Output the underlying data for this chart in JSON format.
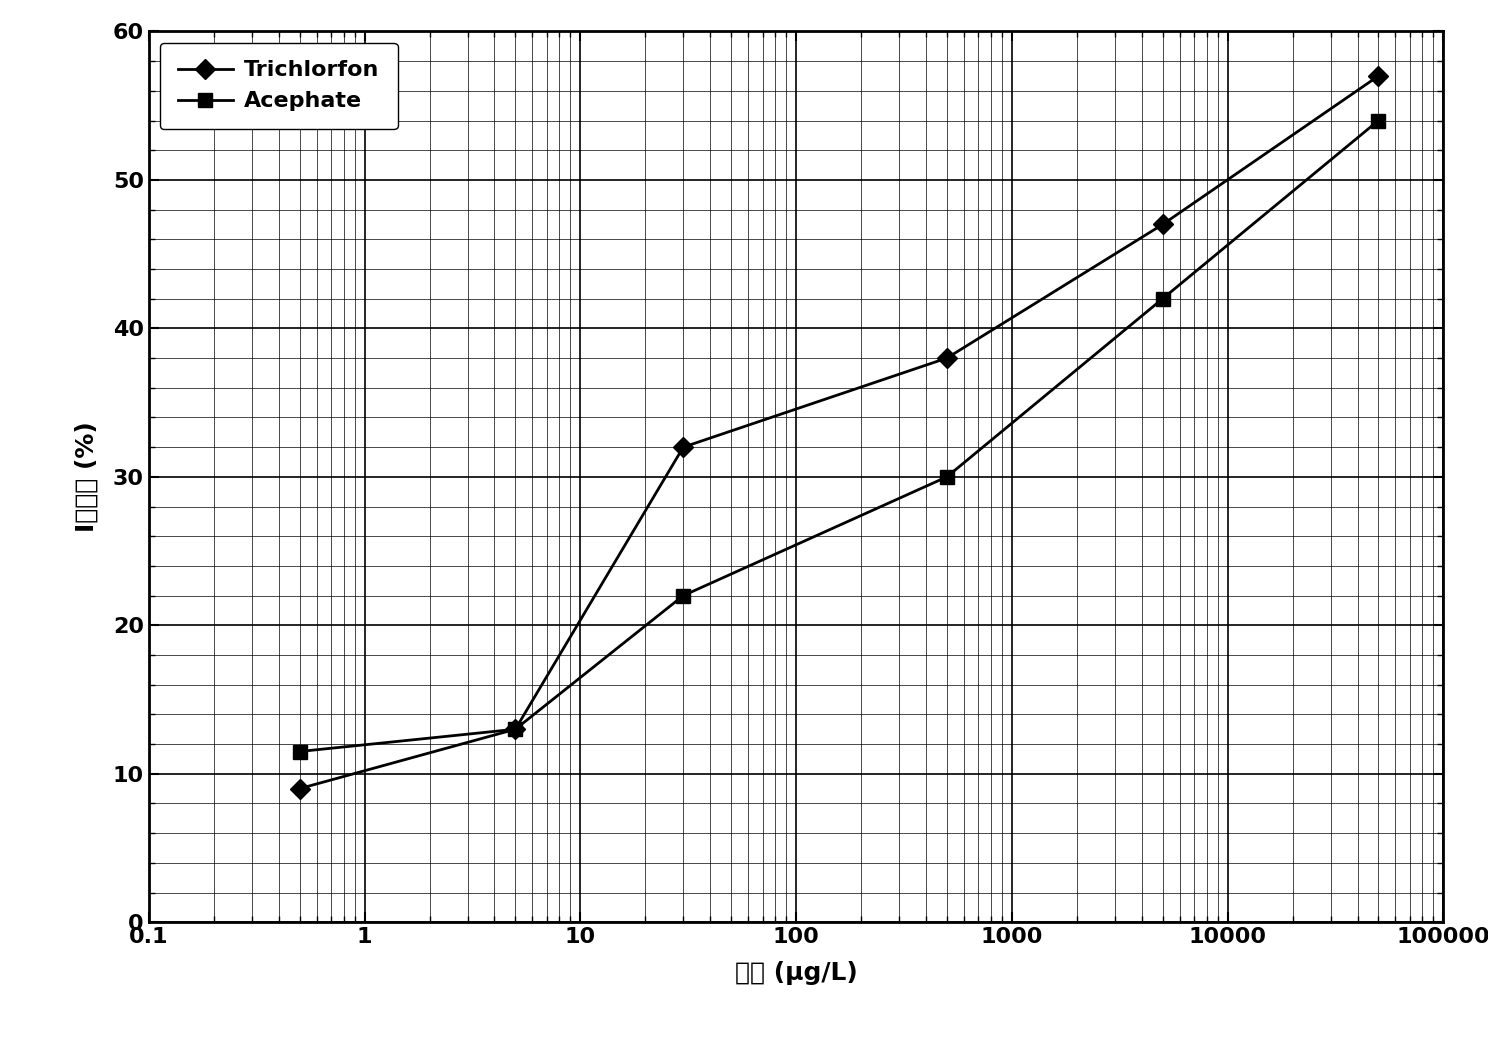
{
  "trichlorfon_x": [
    0.5,
    5,
    30,
    500,
    5000,
    50000
  ],
  "trichlorfon_y": [
    9,
    13,
    32,
    38,
    47,
    57
  ],
  "acephate_x": [
    0.5,
    5,
    30,
    500,
    5000,
    50000
  ],
  "acephate_y": [
    11.5,
    13,
    22,
    30,
    42,
    54
  ],
  "trichlorfon_color": "#000000",
  "acephate_color": "#000000",
  "xlim": [
    0.1,
    100000
  ],
  "ylim": [
    0,
    60
  ],
  "xlabel": "浓度 (μg/L)",
  "ylabel": "I抑制率 (%)",
  "xtick_values": [
    0.1,
    1,
    10,
    100,
    1000,
    10000,
    100000
  ],
  "xtick_labels": [
    "0.1",
    "1",
    "10",
    "100",
    "1000",
    "10000",
    "100000"
  ],
  "ytick_values": [
    0,
    10,
    20,
    30,
    40,
    50,
    60
  ],
  "ytick_labels": [
    "0",
    "10",
    "20",
    "30",
    "40",
    "50",
    "60"
  ],
  "legend_trichlorfon": "Trichlorfon",
  "legend_acephate": "Acephate",
  "label_fontsize": 18,
  "tick_fontsize": 16,
  "legend_fontsize": 16,
  "linewidth": 2.0,
  "markersize": 10,
  "major_grid_linewidth": 1.2,
  "minor_grid_linewidth": 0.5
}
